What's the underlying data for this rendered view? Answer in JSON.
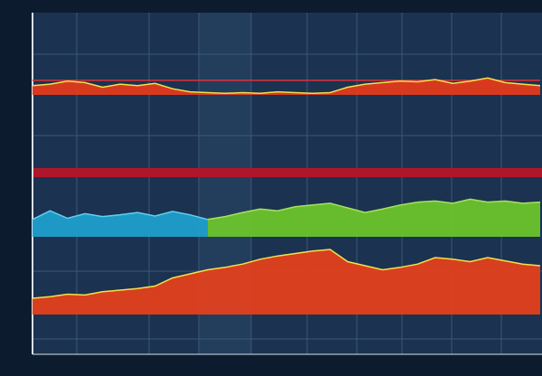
{
  "chart_data": [
    {
      "type": "area",
      "ylim": [
        0,
        100
      ],
      "reference": 19,
      "reference_color": "#e0303a",
      "series": [
        {
          "color": "#e23a1c",
          "edge_color": "#f2e24a",
          "values": [
            12,
            14,
            18,
            16,
            10,
            14,
            12,
            15,
            8,
            4,
            3,
            2,
            3,
            2,
            4,
            3,
            2,
            3,
            10,
            14,
            16,
            18,
            17,
            20,
            15,
            18,
            22,
            16,
            14,
            12
          ]
        }
      ]
    },
    {
      "type": "area",
      "ylim": [
        0,
        100
      ],
      "series": [
        {
          "color": "#1f9fcc",
          "edge_color": "#5fd0f0",
          "values": [
            30,
            45,
            32,
            40,
            35,
            38,
            42,
            36,
            44,
            38,
            30,
            null,
            null,
            null,
            null,
            null,
            null,
            null,
            null,
            null,
            null,
            null,
            null,
            null,
            null,
            null,
            null,
            null,
            null,
            null
          ]
        },
        {
          "color": "#6cc42c",
          "edge_color": "#a8e060",
          "values": [
            null,
            null,
            null,
            null,
            null,
            null,
            null,
            null,
            null,
            null,
            30,
            35,
            42,
            48,
            45,
            52,
            55,
            58,
            50,
            42,
            48,
            55,
            60,
            62,
            58,
            65,
            60,
            62,
            58,
            60
          ]
        }
      ]
    },
    {
      "type": "area",
      "ylim": [
        0,
        100
      ],
      "series": [
        {
          "color": "#e2401c",
          "edge_color": "#f2e24a",
          "values": [
            20,
            22,
            25,
            24,
            28,
            30,
            32,
            35,
            45,
            50,
            55,
            58,
            62,
            68,
            72,
            75,
            78,
            80,
            65,
            60,
            55,
            58,
            62,
            70,
            68,
            65,
            70,
            66,
            62,
            60
          ]
        }
      ]
    }
  ]
}
